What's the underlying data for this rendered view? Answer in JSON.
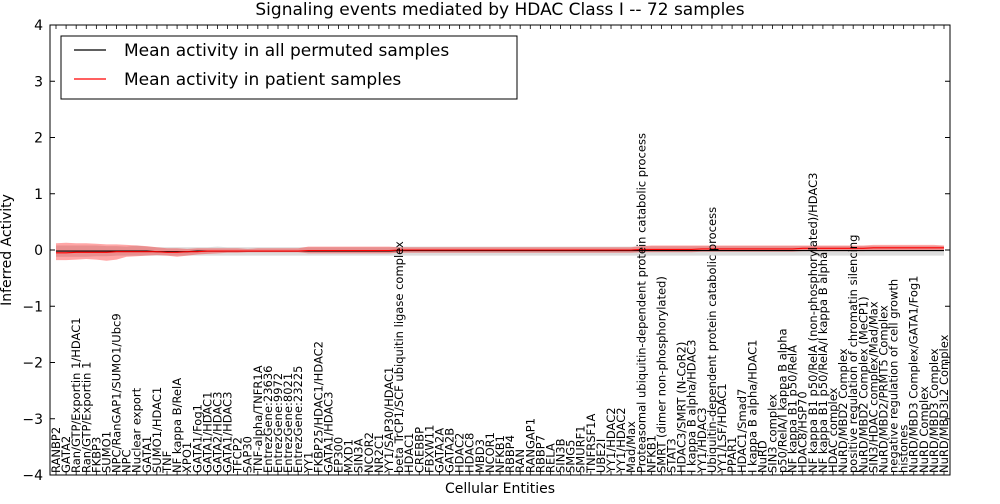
{
  "chart_data": {
    "type": "line",
    "title": "Signaling events mediated by HDAC Class I -- 72 samples",
    "xlabel": "Cellular Entities",
    "ylabel": "Inferred Activity",
    "ylim": [
      -4,
      4
    ],
    "yticks": [
      -4,
      -3,
      -2,
      -1,
      0,
      1,
      2,
      3,
      4
    ],
    "ytick_labels": [
      "−4",
      "−3",
      "−2",
      "−1",
      "0",
      "1",
      "2",
      "3",
      "4"
    ],
    "legend": {
      "position": "top-left",
      "entries": [
        {
          "label": "Mean activity in all permuted samples",
          "color": "#000000"
        },
        {
          "label": "Mean activity in patient samples",
          "color": "#ff0000"
        }
      ]
    },
    "categories": [
      "RANBP2",
      "GATA2",
      "Ran/GTP/Exportin 1/HDAC1",
      "Ran/GTP/Exportin 1",
      "FKBP3",
      "SUMO1",
      "NPC/RanGAP1/SUMO1/Ubc9",
      "NPC",
      "Nuclear export",
      "GATA1",
      "SUMO1/HDAC1",
      "TNF",
      "NF kappa B/RelA",
      "XPO1",
      "GATA1/Fog1",
      "GATA1/HDAC1",
      "GATA2/HDAC3",
      "GATA1/HDAC3",
      "TFCP2",
      "SAP30",
      "TNF-alpha/TNFR1A",
      "EntrezGene:23636",
      "EntrezGene:9972",
      "EntrezGene:8021",
      "EntrezGene:23225",
      "YY1",
      "FKBP25/HDAC1/HDAC2",
      "GATA1/HDAC3",
      "EP300",
      "MXD1",
      "SIN3A",
      "NCOR2",
      "NR2C1",
      "YY1/SAP30/HDAC1",
      "beta TrCP1/SCF ubiquitin ligase complex",
      "HDAC1",
      "CREBBP",
      "FBXW11",
      "GATA2A",
      "GATA2B",
      "HDAC2",
      "HDAC8",
      "MBD3",
      "NCOR1",
      "NFKB1",
      "RBBP4",
      "RAN",
      "RANGAP1",
      "RBBP7",
      "RELA",
      "SIN3B",
      "SMG5",
      "SMURF1",
      "TNFRSF1A",
      "UBE2I",
      "YY1/HDAC2",
      "YY1/HDAC2",
      "Mad/Max",
      "Proteasomal ubiquitin-dependent protein catabolic process",
      "NFKB1",
      "SMRT (dimer non-phosphorylated)",
      "STAT3",
      "HDAC3/SMRT (N-CoR2)",
      "I kappa B alpha/HDAC3",
      "YY1/HDAC3",
      "Ubiquitin-dependent protein catabolic process",
      "YY1/LSF/HDAC1",
      "PPAR1",
      "HDAC1/Smad7",
      "I kappa B alpha/HDAC1",
      "NuRD",
      "SIN3 complex",
      "p50/RelA/I kappa B alpha",
      "NF kappa B1 p50/RelA",
      "HDAC8/HSP70",
      "NF kappa B1 p50/RelA (non-phosphorylated)/HDAC3",
      "NF kappa B1 p50/RelA/I kappa B alpha",
      "HDAC complex",
      "NuRD/MBD2 Complex",
      "positive regulation of chromatin silencing",
      "NuRD/MBD2 Complex (MeCP1)",
      "SIN3/HDAC complex/Mad/Max",
      "NuRD/MBD2/PRMT5 Complex",
      "negative regulation of cell growth",
      "histones",
      "NuRD/MBD3 Complex/GATA1/Fog1",
      "NuRD Complex",
      "NuRD/MBD3 Complex",
      "NuRD/MBD3L2 Complex"
    ],
    "series": [
      {
        "name": "Mean activity in all permuted samples",
        "color": "#000000",
        "values": [
          -0.02,
          -0.02,
          -0.02,
          -0.02,
          -0.02,
          -0.02,
          -0.02,
          -0.02,
          -0.02,
          -0.02,
          -0.03,
          -0.03,
          -0.03,
          -0.03,
          -0.02,
          -0.02,
          -0.02,
          -0.02,
          -0.02,
          -0.02,
          -0.02,
          -0.02,
          -0.02,
          -0.02,
          -0.02,
          -0.02,
          -0.02,
          -0.02,
          -0.02,
          -0.02,
          -0.02,
          -0.02,
          -0.02,
          -0.02,
          -0.01,
          -0.01,
          -0.01,
          -0.01,
          -0.01,
          -0.01,
          -0.01,
          -0.01,
          -0.01,
          -0.01,
          -0.01,
          -0.01,
          -0.01,
          -0.01,
          -0.01,
          -0.01,
          -0.01,
          -0.01,
          -0.01,
          -0.01,
          -0.01,
          -0.01,
          -0.01,
          -0.01,
          -0.01,
          -0.01,
          -0.01,
          -0.01,
          -0.01,
          -0.01,
          -0.01,
          -0.01,
          -0.01,
          -0.01,
          -0.01,
          -0.01,
          -0.01,
          -0.01,
          -0.01,
          -0.01,
          -0.01,
          -0.01,
          -0.01,
          -0.01,
          -0.01,
          -0.01,
          -0.01,
          -0.01,
          -0.01,
          -0.01,
          -0.01,
          -0.01,
          -0.01,
          -0.01,
          -0.01
        ]
      },
      {
        "name": "Mean activity in patient samples",
        "color": "#ff0000",
        "values": [
          -0.05,
          -0.05,
          -0.04,
          -0.04,
          -0.04,
          -0.04,
          -0.03,
          -0.03,
          -0.03,
          -0.03,
          -0.03,
          -0.04,
          -0.04,
          -0.03,
          -0.03,
          -0.02,
          -0.02,
          -0.02,
          -0.02,
          -0.02,
          -0.02,
          -0.02,
          -0.02,
          -0.02,
          -0.02,
          -0.01,
          -0.01,
          -0.01,
          -0.01,
          -0.01,
          -0.01,
          -0.01,
          -0.01,
          -0.01,
          0.0,
          0.0,
          0.0,
          0.0,
          0.0,
          0.0,
          0.0,
          0.0,
          0.0,
          0.0,
          0.0,
          0.0,
          0.0,
          0.0,
          0.0,
          0.0,
          0.0,
          0.0,
          0.0,
          0.0,
          0.0,
          0.0,
          0.0,
          0.0,
          0.01,
          0.01,
          0.01,
          0.01,
          0.01,
          0.01,
          0.02,
          0.02,
          0.02,
          0.02,
          0.02,
          0.02,
          0.02,
          0.02,
          0.02,
          0.02,
          0.03,
          0.03,
          0.03,
          0.03,
          0.03,
          0.03,
          0.03,
          0.04,
          0.04,
          0.04,
          0.04,
          0.04,
          0.04,
          0.04,
          0.04
        ]
      }
    ],
    "bands": [
      {
        "name": "permuted spread",
        "color": "#c0c0c0",
        "upper": [
          0.08,
          0.08,
          0.08,
          0.08,
          0.08,
          0.07,
          0.07,
          0.06,
          0.08,
          0.06,
          0.05,
          0.05,
          0.05,
          0.05,
          0.05,
          0.05,
          0.06,
          0.05,
          0.05,
          0.05,
          0.05,
          0.05,
          0.05,
          0.05,
          0.05,
          0.05,
          0.05,
          0.05,
          0.05,
          0.05,
          0.05,
          0.05,
          0.05,
          0.05,
          0.06,
          0.06,
          0.06,
          0.06,
          0.06,
          0.06,
          0.06,
          0.06,
          0.06,
          0.06,
          0.06,
          0.06,
          0.06,
          0.06,
          0.06,
          0.06,
          0.06,
          0.06,
          0.06,
          0.06,
          0.06,
          0.06,
          0.06,
          0.06,
          0.07,
          0.07,
          0.07,
          0.07,
          0.07,
          0.07,
          0.07,
          0.07,
          0.07,
          0.07,
          0.07,
          0.07,
          0.07,
          0.07,
          0.07,
          0.07,
          0.07,
          0.07,
          0.07,
          0.07,
          0.07,
          0.07,
          0.07,
          0.07,
          0.07,
          0.07,
          0.07,
          0.07,
          0.07,
          0.07,
          0.07
        ],
        "lower": [
          -0.12,
          -0.12,
          -0.12,
          -0.12,
          -0.11,
          -0.11,
          -0.1,
          -0.1,
          -0.1,
          -0.1,
          -0.1,
          -0.1,
          -0.1,
          -0.1,
          -0.1,
          -0.1,
          -0.1,
          -0.1,
          -0.1,
          -0.1,
          -0.1,
          -0.1,
          -0.1,
          -0.1,
          -0.1,
          -0.1,
          -0.1,
          -0.1,
          -0.1,
          -0.1,
          -0.1,
          -0.1,
          -0.1,
          -0.1,
          -0.1,
          -0.1,
          -0.1,
          -0.1,
          -0.1,
          -0.1,
          -0.1,
          -0.1,
          -0.1,
          -0.1,
          -0.1,
          -0.1,
          -0.1,
          -0.1,
          -0.1,
          -0.1,
          -0.1,
          -0.1,
          -0.1,
          -0.1,
          -0.1,
          -0.1,
          -0.1,
          -0.1,
          -0.1,
          -0.1,
          -0.1,
          -0.1,
          -0.1,
          -0.1,
          -0.1,
          -0.1,
          -0.1,
          -0.1,
          -0.1,
          -0.1,
          -0.1,
          -0.1,
          -0.1,
          -0.1,
          -0.1,
          -0.1,
          -0.1,
          -0.1,
          -0.1,
          -0.1,
          -0.1,
          -0.1,
          -0.1,
          -0.1,
          -0.1,
          -0.1,
          -0.1,
          -0.1,
          -0.1
        ]
      },
      {
        "name": "patient spread",
        "color": "#ff0000",
        "upper": [
          0.12,
          0.13,
          0.12,
          0.12,
          0.11,
          0.1,
          0.1,
          0.09,
          0.08,
          0.07,
          0.05,
          0.03,
          0.03,
          0.02,
          0.03,
          0.03,
          0.03,
          0.03,
          0.03,
          0.02,
          0.03,
          0.03,
          0.03,
          0.03,
          0.03,
          0.06,
          0.06,
          0.06,
          0.06,
          0.06,
          0.06,
          0.06,
          0.06,
          0.06,
          0.05,
          0.05,
          0.05,
          0.05,
          0.05,
          0.05,
          0.05,
          0.05,
          0.05,
          0.05,
          0.05,
          0.05,
          0.05,
          0.05,
          0.05,
          0.05,
          0.05,
          0.05,
          0.05,
          0.05,
          0.05,
          0.05,
          0.05,
          0.05,
          0.07,
          0.08,
          0.08,
          0.08,
          0.08,
          0.08,
          0.08,
          0.08,
          0.08,
          0.08,
          0.08,
          0.08,
          0.08,
          0.08,
          0.08,
          0.08,
          0.08,
          0.08,
          0.08,
          0.08,
          0.08,
          0.08,
          0.08,
          0.09,
          0.09,
          0.09,
          0.09,
          0.09,
          0.09,
          0.09,
          0.08
        ],
        "lower": [
          -0.18,
          -0.18,
          -0.17,
          -0.16,
          -0.17,
          -0.19,
          -0.17,
          -0.12,
          -0.11,
          -0.1,
          -0.09,
          -0.1,
          -0.12,
          -0.1,
          -0.08,
          -0.07,
          -0.06,
          -0.05,
          -0.05,
          -0.04,
          -0.04,
          -0.04,
          -0.04,
          -0.04,
          -0.04,
          -0.06,
          -0.06,
          -0.06,
          -0.06,
          -0.06,
          -0.06,
          -0.06,
          -0.06,
          -0.06,
          -0.05,
          -0.05,
          -0.05,
          -0.05,
          -0.05,
          -0.05,
          -0.05,
          -0.05,
          -0.05,
          -0.05,
          -0.05,
          -0.05,
          -0.05,
          -0.05,
          -0.05,
          -0.05,
          -0.05,
          -0.05,
          -0.05,
          -0.05,
          -0.05,
          -0.05,
          -0.05,
          -0.05,
          -0.04,
          -0.04,
          -0.04,
          -0.04,
          -0.04,
          -0.04,
          -0.03,
          -0.03,
          -0.03,
          -0.03,
          -0.03,
          -0.03,
          -0.03,
          -0.03,
          -0.03,
          -0.03,
          -0.02,
          -0.02,
          -0.02,
          -0.02,
          -0.02,
          -0.02,
          -0.02,
          -0.01,
          -0.01,
          -0.01,
          -0.01,
          -0.01,
          -0.01,
          -0.01,
          -0.01
        ]
      }
    ]
  }
}
